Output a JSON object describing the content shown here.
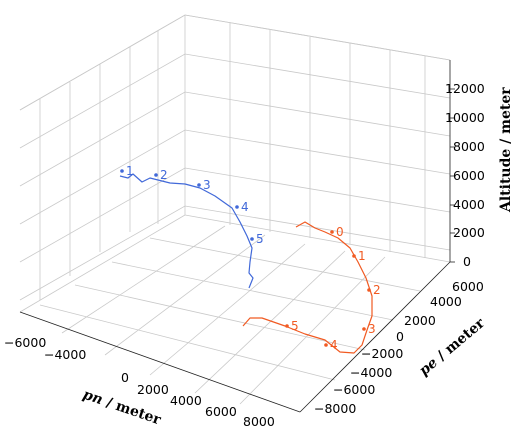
{
  "chart_data": {
    "type": "line",
    "projection": "3d",
    "grid": true,
    "axes": {
      "pn": {
        "label": "pn / meter",
        "ticks": [
          -6000,
          -4000,
          0,
          2000,
          4000,
          6000,
          8000
        ],
        "tick_labels": [
          "−6000",
          "−4000",
          "0",
          "2000",
          "4000",
          "6000",
          "8000"
        ]
      },
      "pe": {
        "label": "pe / meter",
        "ticks": [
          6000,
          4000,
          2000,
          0,
          -2000,
          -4000,
          -6000,
          -8000
        ],
        "tick_labels": [
          "6000",
          "4000",
          "2000",
          "0",
          "−2000",
          "−4000",
          "−6000",
          "−8000"
        ]
      },
      "altitude": {
        "label": "Altitude / meter",
        "ticks": [
          0,
          2000,
          4000,
          6000,
          8000,
          10000,
          12000
        ],
        "tick_labels": [
          "0",
          "2000",
          "4000",
          "6000",
          "8000",
          "10000",
          "12000"
        ]
      }
    },
    "series": [
      {
        "color": "#4169d9",
        "waypoint_labels": [
          "1",
          "2",
          "3",
          "4",
          "5"
        ]
      },
      {
        "color": "#f15a22",
        "waypoint_labels": [
          "0",
          "1",
          "2",
          "3",
          "4",
          "5"
        ]
      }
    ]
  }
}
